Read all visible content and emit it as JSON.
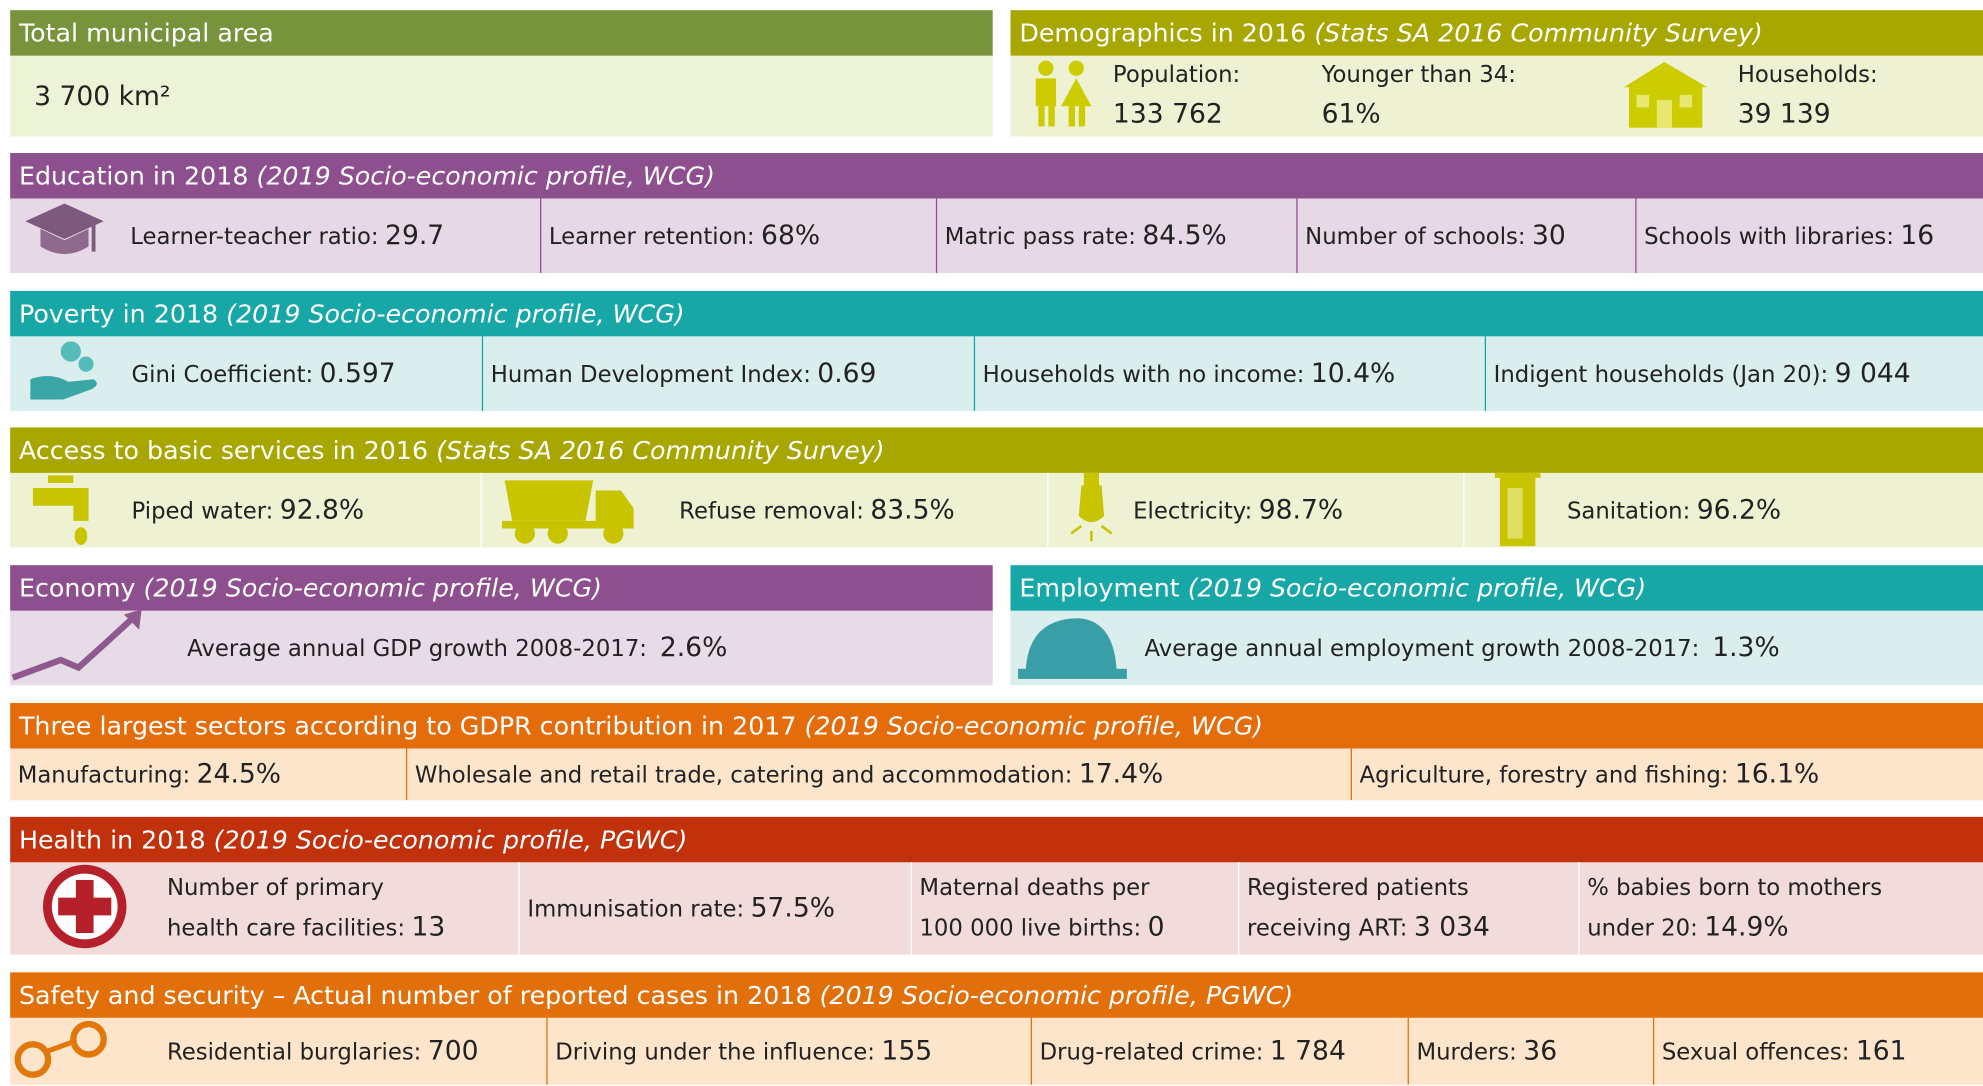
{
  "area": {
    "title": "Total municipal area",
    "value": "3 700 km²"
  },
  "demographics": {
    "title": "Demographics in 2016",
    "source": "(Stats SA 2016 Community Survey)",
    "items": [
      {
        "label": "Population:",
        "value": "133 762"
      },
      {
        "label": "Younger than 34:",
        "value": "61%"
      },
      {
        "label": "Households:",
        "value": "39 139"
      }
    ]
  },
  "education": {
    "title": "Education in 2018",
    "source": "(2019 Socio-economic profile, WCG)",
    "items": [
      {
        "label": "Learner-teacher ratio:",
        "value": "29.7"
      },
      {
        "label": "Learner retention:",
        "value": "68%"
      },
      {
        "label": "Matric pass rate:",
        "value": "84.5%"
      },
      {
        "label": "Number of schools:",
        "value": "30"
      },
      {
        "label": "Schools with libraries:",
        "value": "16"
      }
    ]
  },
  "poverty": {
    "title": "Poverty in 2018",
    "source": "(2019 Socio-economic profile, WCG)",
    "items": [
      {
        "label": "Gini Coefficient:",
        "value": "0.597"
      },
      {
        "label": "Human Development Index:",
        "value": "0.69"
      },
      {
        "label": "Households with no income:",
        "value": "10.4%"
      },
      {
        "label": "Indigent households (Jan 20):",
        "value": "9 044"
      }
    ]
  },
  "services": {
    "title": "Access to basic services in 2016",
    "source": "(Stats SA 2016 Community Survey)",
    "items": [
      {
        "label": "Piped water:",
        "value": "92.8%"
      },
      {
        "label": "Refuse removal:",
        "value": "83.5%"
      },
      {
        "label": "Electricity:",
        "value": "98.7%"
      },
      {
        "label": "Sanitation:",
        "value": "96.2%"
      }
    ]
  },
  "economy": {
    "title": "Economy",
    "source": "(2019 Socio-economic profile, WCG)",
    "items": [
      {
        "label": "Average annual GDP growth 2008-2017:",
        "value": "2.6%"
      }
    ]
  },
  "employment": {
    "title": "Employment",
    "source": "(2019 Socio-economic profile, WCG)",
    "items": [
      {
        "label": "Average annual employment growth 2008-2017:",
        "value": "1.3%"
      }
    ]
  },
  "sectors": {
    "title": "Three largest sectors according to GDPR contribution in 2017",
    "source": "(2019 Socio-economic profile, WCG)",
    "items": [
      {
        "label": "Manufacturing:",
        "value": "24.5%"
      },
      {
        "label": "Wholesale and retail trade, catering and accommodation:",
        "value": "17.4%"
      },
      {
        "label": "Agriculture, forestry and fishing:",
        "value": "16.1%"
      }
    ]
  },
  "health": {
    "title": "Health in 2018",
    "source": "(2019 Socio-economic profile, PGWC)",
    "items": [
      {
        "label": [
          "Number of primary",
          "health care facilities:"
        ],
        "value": "13"
      },
      {
        "label": [
          "Immunisation rate:"
        ],
        "value": "57.5%"
      },
      {
        "label": [
          "Maternal deaths per",
          "100 000 live births:"
        ],
        "value": "0"
      },
      {
        "label": [
          "Registered patients",
          "receiving ART:"
        ],
        "value": "3 034"
      },
      {
        "label": [
          "% babies born to mothers",
          "under 20:"
        ],
        "value": "14.9%"
      }
    ]
  },
  "safety": {
    "title": "Safety and security – Actual number of reported cases in 2018",
    "source": "(2019 Socio-economic profile, PGWC)",
    "items": [
      {
        "label": "Residential burglaries:",
        "value": "700"
      },
      {
        "label": "Driving under the influence:",
        "value": "155"
      },
      {
        "label": "Drug-related crime:",
        "value": "1 784"
      },
      {
        "label": "Murders:",
        "value": "36"
      },
      {
        "label": "Sexual offences:",
        "value": "161"
      }
    ]
  }
}
